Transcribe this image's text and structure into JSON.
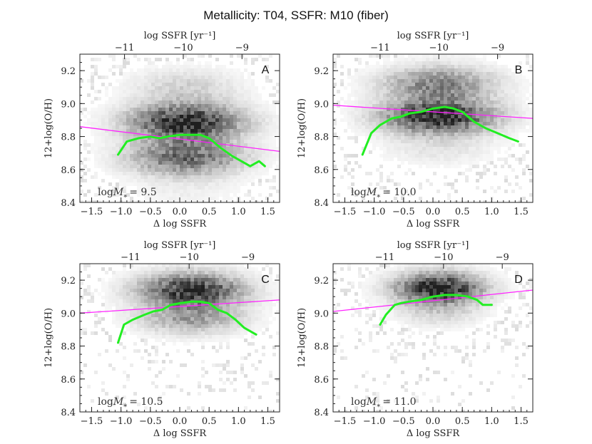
{
  "figure_title": "Metallicity: T04,   SSFR: M10 (fiber)",
  "colors": {
    "fit_line": "#ff22ff",
    "median_curve": "#22ee22",
    "density": "#000000",
    "frame": "#222222"
  },
  "chart_data": [
    {
      "type": "line",
      "panel": "A",
      "title": "Metallicity: T04,   SSFR: M10 (fiber)",
      "xlabel": "Δ log SSFR",
      "ylabel": "12+log(O/H)",
      "top_xlabel": "log SSFR [yr⁻¹]",
      "xlim": [
        -1.7,
        1.7
      ],
      "ylim": [
        8.4,
        9.3
      ],
      "xticks": [
        -1.5,
        -1.0,
        -0.5,
        0.0,
        0.5,
        1.0,
        1.5
      ],
      "xtick_labels": [
        "−1.5",
        "−1.0",
        "−0.5",
        "0.0",
        "0.5",
        "1.0",
        "1.5"
      ],
      "yticks": [
        8.4,
        8.6,
        8.8,
        9.0,
        9.2
      ],
      "ytick_labels": [
        "8.4",
        "8.6",
        "8.8",
        "9.0",
        "9.2"
      ],
      "top_ticks": [
        -11,
        -10,
        -9
      ],
      "top_tick_labels": [
        "−11",
        "−10",
        "−9"
      ],
      "top_offset": 10.06,
      "mass_label": {
        "prefix": "log",
        "symbol": "M",
        "sub": "*",
        "eq": "= 9.5"
      },
      "density_peak": [
        0.1,
        8.82
      ],
      "density_spread": [
        0.65,
        0.17
      ],
      "fit_line": {
        "x": [
          -1.7,
          1.7
        ],
        "y": [
          8.86,
          8.71
        ]
      },
      "series": [
        {
          "name": "median",
          "x": [
            -1.05,
            -0.9,
            -0.7,
            -0.5,
            -0.35,
            -0.2,
            0.0,
            0.2,
            0.35,
            0.5,
            0.7,
            0.9,
            1.05,
            1.2,
            1.35,
            1.45
          ],
          "y": [
            8.69,
            8.77,
            8.79,
            8.8,
            8.79,
            8.8,
            8.81,
            8.81,
            8.81,
            8.79,
            8.73,
            8.68,
            8.65,
            8.62,
            8.65,
            8.62
          ]
        }
      ]
    },
    {
      "type": "line",
      "panel": "B",
      "xlabel": "Δ log SSFR",
      "ylabel": "12+log(O/H)",
      "top_xlabel": "log SSFR [yr⁻¹]",
      "xlim": [
        -1.7,
        1.7
      ],
      "ylim": [
        8.4,
        9.3
      ],
      "xticks": [
        -1.5,
        -1.0,
        -0.5,
        0.0,
        0.5,
        1.0,
        1.5
      ],
      "xtick_labels": [
        "−1.5",
        "−1.0",
        "−0.5",
        "0.0",
        "0.5",
        "1.0",
        "1.5"
      ],
      "yticks": [
        8.4,
        8.6,
        8.8,
        9.0,
        9.2
      ],
      "ytick_labels": [
        "8.4",
        "8.6",
        "8.8",
        "9.0",
        "9.2"
      ],
      "top_ticks": [
        -11,
        -10,
        -9
      ],
      "top_tick_labels": [
        "−11",
        "−10",
        "−9"
      ],
      "top_offset": 10.1,
      "mass_label": {
        "prefix": "log",
        "symbol": "M",
        "sub": "*",
        "eq": "= 10.0"
      },
      "density_peak": [
        0.1,
        8.98
      ],
      "density_spread": [
        0.65,
        0.14
      ],
      "fit_line": {
        "x": [
          -1.7,
          1.7
        ],
        "y": [
          8.99,
          8.91
        ]
      },
      "series": [
        {
          "name": "median",
          "x": [
            -1.2,
            -1.05,
            -0.9,
            -0.7,
            -0.55,
            -0.4,
            -0.2,
            0.0,
            0.2,
            0.35,
            0.5,
            0.6,
            0.7,
            0.9,
            1.1,
            1.3,
            1.45
          ],
          "y": [
            8.69,
            8.82,
            8.87,
            8.91,
            8.92,
            8.94,
            8.95,
            8.97,
            8.98,
            8.97,
            8.95,
            8.92,
            8.89,
            8.85,
            8.82,
            8.79,
            8.77
          ]
        }
      ]
    },
    {
      "type": "line",
      "panel": "C",
      "xlabel": "Δ log SSFR",
      "ylabel": "12+log(O/H)",
      "top_xlabel": "log SSFR [yr⁻¹]",
      "xlim": [
        -1.7,
        1.7
      ],
      "ylim": [
        8.4,
        9.3
      ],
      "xticks": [
        -1.5,
        -1.0,
        -0.5,
        0.0,
        0.5,
        1.0,
        1.5
      ],
      "xtick_labels": [
        "−1.5",
        "−1.0",
        "−0.5",
        "0.0",
        "0.5",
        "1.0",
        "1.5"
      ],
      "yticks": [
        8.4,
        8.6,
        8.8,
        9.0,
        9.2
      ],
      "ytick_labels": [
        "8.4",
        "8.6",
        "8.8",
        "9.0",
        "9.2"
      ],
      "top_ticks": [
        -11,
        -10,
        -9
      ],
      "top_tick_labels": [
        "−11",
        "−10",
        "−9"
      ],
      "top_offset": 10.16,
      "mass_label": {
        "prefix": "log",
        "symbol": "M",
        "sub": "*",
        "eq": "= 10.5"
      },
      "density_peak": [
        0.2,
        9.09
      ],
      "density_spread": [
        0.6,
        0.11
      ],
      "fit_line": {
        "x": [
          -1.7,
          1.7
        ],
        "y": [
          9.0,
          9.08
        ]
      },
      "series": [
        {
          "name": "median",
          "x": [
            -1.05,
            -0.95,
            -0.8,
            -0.6,
            -0.45,
            -0.3,
            -0.15,
            0.0,
            0.2,
            0.35,
            0.5,
            0.65,
            0.8,
            0.95,
            1.1,
            1.3
          ],
          "y": [
            8.82,
            8.93,
            8.96,
            8.99,
            9.01,
            9.02,
            9.05,
            9.06,
            9.07,
            9.07,
            9.06,
            9.02,
            9.0,
            8.96,
            8.91,
            8.87
          ]
        }
      ]
    },
    {
      "type": "line",
      "panel": "D",
      "xlabel": "Δ log SSFR",
      "ylabel": "12+log(O/H)",
      "top_xlabel": "log SSFR [yr⁻¹]",
      "xlim": [
        -1.7,
        1.7
      ],
      "ylim": [
        8.4,
        9.3
      ],
      "xticks": [
        -1.5,
        -1.0,
        -0.5,
        0.0,
        0.5,
        1.0,
        1.5
      ],
      "xtick_labels": [
        "−1.5",
        "−1.0",
        "−0.5",
        "0.0",
        "0.5",
        "1.0",
        "1.5"
      ],
      "yticks": [
        8.4,
        8.6,
        8.8,
        9.0,
        9.2
      ],
      "ytick_labels": [
        "8.4",
        "8.6",
        "8.8",
        "9.0",
        "9.2"
      ],
      "top_ticks": [
        -11,
        -10,
        -9
      ],
      "top_tick_labels": [
        "−11",
        "−10",
        "−9"
      ],
      "top_offset": 10.18,
      "mass_label": {
        "prefix": "log",
        "symbol": "M",
        "sub": "*",
        "eq": "= 11.0"
      },
      "density_peak": [
        0.1,
        9.13
      ],
      "density_spread": [
        0.5,
        0.09
      ],
      "fit_line": {
        "x": [
          -1.7,
          1.7
        ],
        "y": [
          9.01,
          9.14
        ]
      },
      "series": [
        {
          "name": "median",
          "x": [
            -0.9,
            -0.8,
            -0.65,
            -0.55,
            -0.4,
            -0.2,
            0.0,
            0.2,
            0.4,
            0.6,
            0.75,
            0.85,
            1.0
          ],
          "y": [
            8.93,
            8.99,
            9.05,
            9.06,
            9.07,
            9.08,
            9.1,
            9.11,
            9.11,
            9.1,
            9.08,
            9.05,
            9.05
          ]
        }
      ]
    }
  ]
}
